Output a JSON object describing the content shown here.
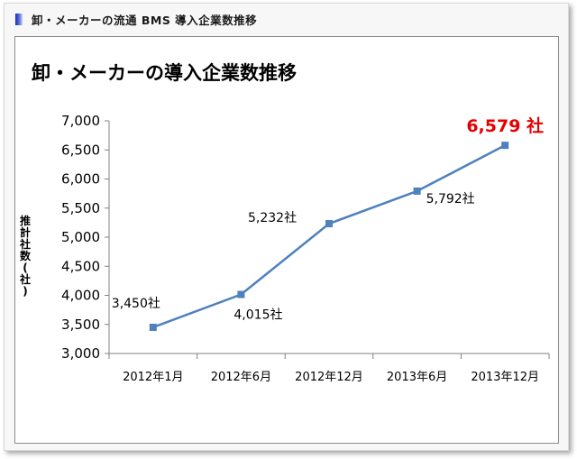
{
  "header": {
    "title": "卸・メーカーの流通 BMS 導入企業数推移"
  },
  "colors": {
    "line": "#4f81bd",
    "highlight_label": "#e60000",
    "header_marker": "#1a2ca8"
  },
  "chart_data": {
    "type": "line",
    "title": "卸・メーカーの導入企業数推移",
    "xlabel": "",
    "ylabel": "推計社数(社)",
    "categories": [
      "2012年1月",
      "2012年6月",
      "2012年12月",
      "2013年6月",
      "2013年12月"
    ],
    "values": [
      3450,
      4015,
      5232,
      5792,
      6579
    ],
    "data_labels": [
      "3,450社",
      "4,015社",
      "5,232社",
      "5,792社",
      "6,579 社"
    ],
    "highlight_index": 4,
    "ylim": [
      3000,
      7000
    ],
    "yticks": [
      3000,
      3500,
      4000,
      4500,
      5000,
      5500,
      6000,
      6500,
      7000
    ],
    "ytick_labels": [
      "3,000",
      "3,500",
      "4,000",
      "4,500",
      "5,000",
      "5,500",
      "6,000",
      "6,500",
      "7,000"
    ],
    "grid": false,
    "legend": "none",
    "marker": "square"
  }
}
